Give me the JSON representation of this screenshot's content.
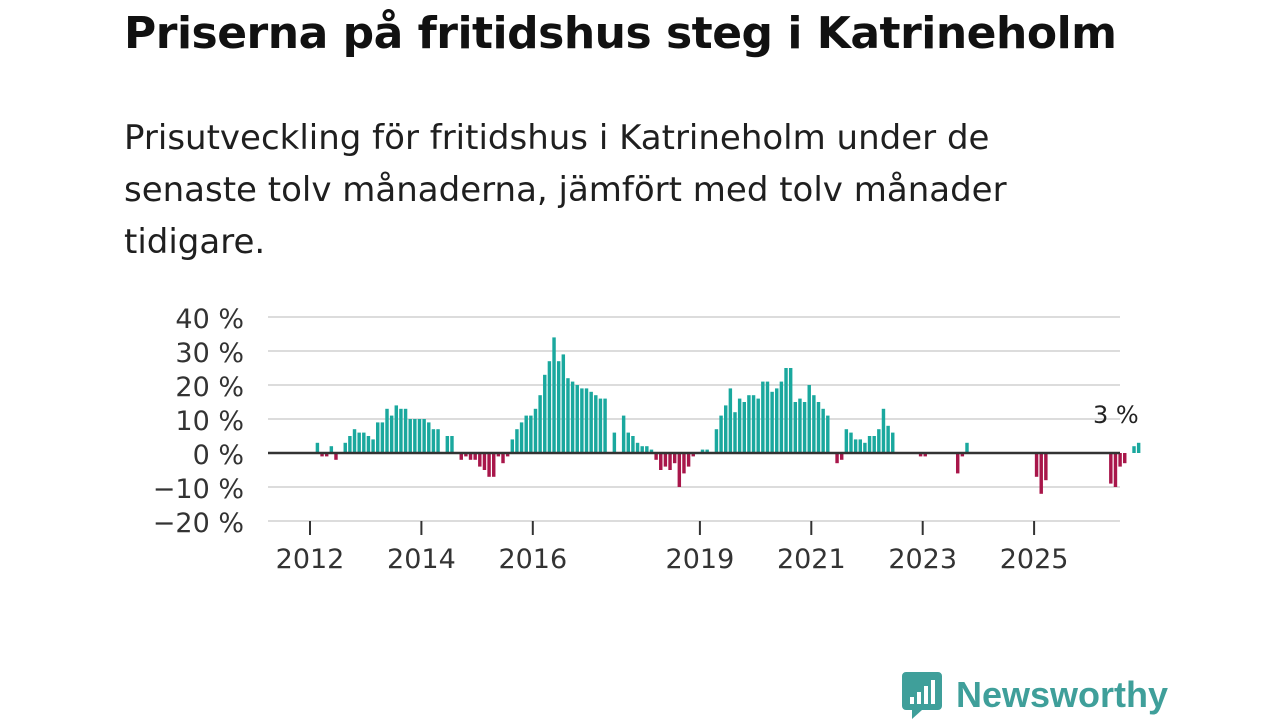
{
  "title": "Priserna på fritidshus steg i Katrineholm",
  "subtitle": "Prisutveckling för fritidshus i Katrineholm under de senaste tolv månaderna, jämfört med tolv månader tidigare.",
  "brand": {
    "name": "Newsworthy",
    "icon": "newsworthy-logo-icon",
    "color": "#3f9f9a"
  },
  "colors": {
    "positive": "#1aa89e",
    "negative": "#a8164a",
    "grid": "#dcdcdc",
    "zero": "#333333"
  },
  "chart_data": {
    "type": "bar",
    "title": "Priserna på fritidshus steg i Katrineholm",
    "xlabel": "",
    "ylabel": "",
    "start_year": 2011.55,
    "end_year": 2026.6,
    "bar_step_years": 0.0833,
    "ylim": [
      -20,
      40
    ],
    "y_ticks": [
      -20,
      -10,
      0,
      10,
      20,
      30,
      40
    ],
    "y_tick_labels": [
      "−20 %",
      "−10 %",
      "0 %",
      "10 %",
      "20 %",
      "30 %",
      "40 %"
    ],
    "x_ticks": [
      2012,
      2014,
      2016,
      2019,
      2021,
      2023,
      2025
    ],
    "x_tick_labels": [
      "2012",
      "2014",
      "2016",
      "2019",
      "2021",
      "2023",
      "2025"
    ],
    "grid": true,
    "annotation": {
      "text": "3 %",
      "at": "last"
    },
    "values": [
      0,
      0,
      0,
      0,
      0,
      0,
      0,
      3,
      -1,
      -1,
      2,
      -2,
      0,
      3,
      5,
      7,
      6,
      6,
      5,
      4,
      9,
      9,
      13,
      11,
      14,
      13,
      13,
      10,
      10,
      10,
      10,
      9,
      7,
      7,
      0,
      5,
      5,
      0,
      -2,
      -1,
      -2,
      -2,
      -4,
      -5,
      -7,
      -7,
      -1,
      -3,
      -1,
      4,
      7,
      9,
      11,
      11,
      13,
      17,
      23,
      27,
      34,
      27,
      29,
      22,
      21,
      20,
      19,
      19,
      18,
      17,
      16,
      16,
      0,
      6,
      0,
      11,
      6,
      5,
      3,
      2,
      2,
      1,
      -2,
      -5,
      -4,
      -5,
      -3,
      -10,
      -6,
      -4,
      -1,
      0,
      1,
      1,
      0,
      7,
      11,
      14,
      19,
      12,
      16,
      15,
      17,
      17,
      16,
      21,
      21,
      18,
      19,
      21,
      25,
      25,
      15,
      16,
      15,
      20,
      17,
      15,
      13,
      11,
      0,
      -3,
      -2,
      7,
      6,
      4,
      4,
      3,
      5,
      5,
      7,
      13,
      8,
      6,
      0,
      0,
      0,
      0,
      0,
      -1,
      -1,
      0,
      0,
      0,
      0,
      0,
      0,
      -6,
      -1,
      3,
      0,
      0,
      0,
      0,
      0,
      0,
      0,
      0,
      0,
      0,
      0,
      0,
      0,
      0,
      -7,
      -12,
      -8,
      0,
      0,
      0,
      0,
      0,
      0,
      0,
      0,
      0,
      0,
      0,
      0,
      0,
      -9,
      -10,
      -4,
      -3,
      0,
      2,
      3
    ]
  }
}
